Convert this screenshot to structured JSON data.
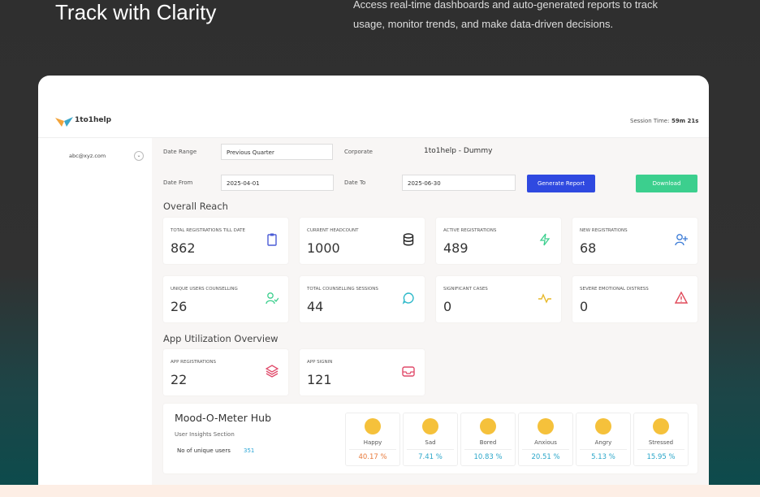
{
  "hero": {
    "title": "Track with Clarity",
    "description": "Access real-time dashboards and auto-generated reports to track usage, monitor trends, and make data-driven decisions."
  },
  "header": {
    "logo": "1to1help",
    "session_label": "Session Time:",
    "session_time": "59m 21s"
  },
  "sidebar": {
    "user": "abc@xyz.com"
  },
  "filters": {
    "date_range_label": "Date Range",
    "date_range": "Previous Quarter",
    "corporate_label": "Corporate",
    "corporate": "1to1help - Dummy",
    "date_from_label": "Date From",
    "date_from": "2025-04-01",
    "date_to_label": "Date To",
    "date_to": "2025-06-30",
    "generate": "Generate Report",
    "download": "Download"
  },
  "overall": {
    "title": "Overall Reach",
    "cards": [
      {
        "label": "TOTAL REGISTRATIONS TILL DATE",
        "value": "862"
      },
      {
        "label": "CURRENT HEADCOUNT",
        "value": "1000"
      },
      {
        "label": "ACTIVE REGISTRATIONS",
        "value": "489"
      },
      {
        "label": "NEW REGISTRATIONS",
        "value": "68"
      },
      {
        "label": "UNIQUE USERS COUNSELLING",
        "value": "26"
      },
      {
        "label": "TOTAL COUNSELLING SESSIONS",
        "value": "44"
      },
      {
        "label": "SIGNIFICANT CASES",
        "value": "0"
      },
      {
        "label": "SEVERE EMOTIONAL DISTRESS",
        "value": "0"
      }
    ]
  },
  "app": {
    "title": "App Utilization Overview",
    "cards": [
      {
        "label": "APP REGISTRATIONS",
        "value": "22"
      },
      {
        "label": "APP SIGNIN",
        "value": "121"
      }
    ]
  },
  "mood": {
    "title": "Mood-O-Meter Hub",
    "subtitle": "User Insights Section",
    "users_label": "No of unique users",
    "users": "351",
    "moods": [
      {
        "name": "Happy",
        "value": "40.17 %"
      },
      {
        "name": "Sad",
        "value": "7.41 %"
      },
      {
        "name": "Bored",
        "value": "10.83 %"
      },
      {
        "name": "Anxious",
        "value": "20.51 %"
      },
      {
        "name": "Angry",
        "value": "5.13 %"
      },
      {
        "name": "Stressed",
        "value": "15.95 %"
      }
    ]
  }
}
